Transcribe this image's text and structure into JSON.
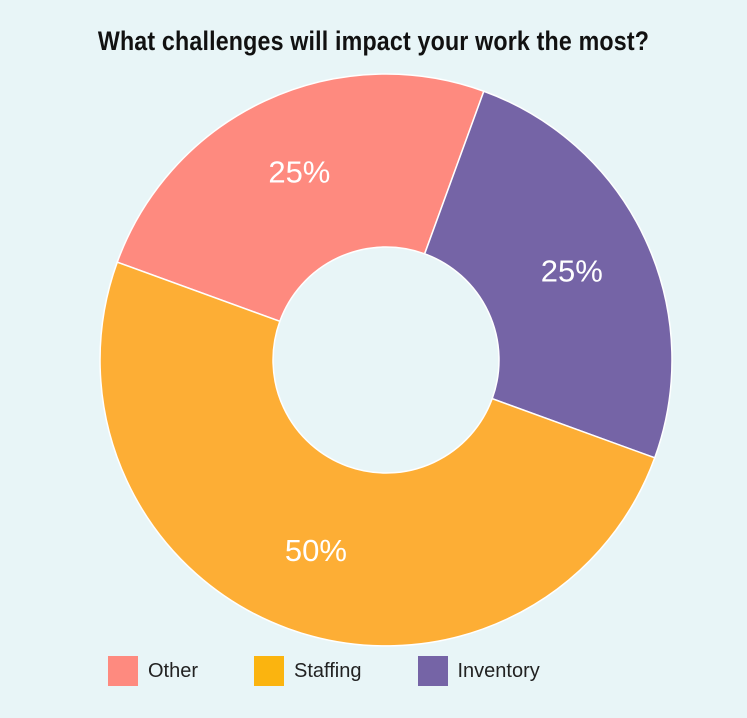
{
  "chart_data": {
    "type": "pie",
    "variant": "donut",
    "title": "What challenges will impact your work the most?",
    "slices": [
      {
        "name": "Other",
        "value": 25,
        "label": "25%",
        "color": "#fe8a7f"
      },
      {
        "name": "Inventory",
        "value": 25,
        "label": "25%",
        "color": "#7564a6"
      },
      {
        "name": "Staffing",
        "value": 50,
        "label": "50%",
        "color": "#fdae35"
      }
    ],
    "legend_position": "bottom",
    "legend": [
      {
        "name": "Other",
        "color": "#fe8a7f"
      },
      {
        "name": "Staffing",
        "color": "#fbb40f"
      },
      {
        "name": "Inventory",
        "color": "#7564a6"
      }
    ]
  }
}
